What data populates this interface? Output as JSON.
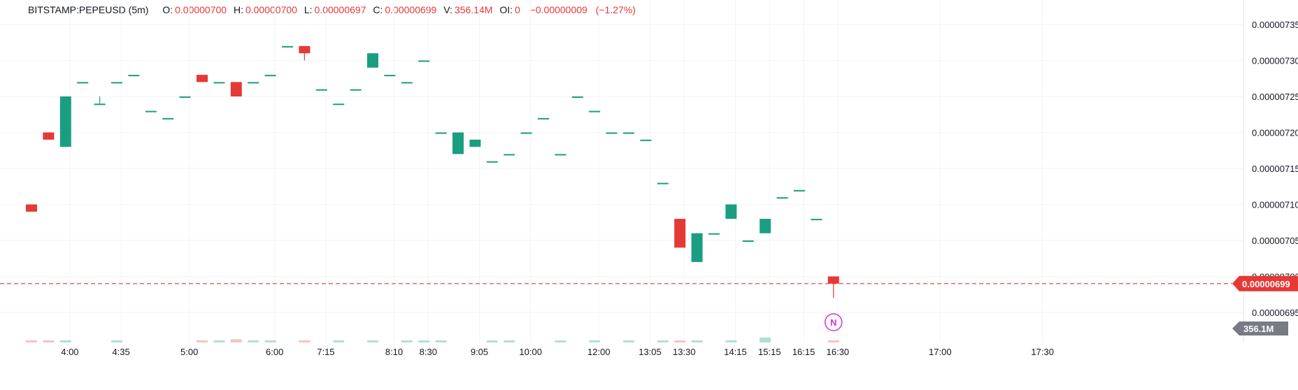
{
  "legend": {
    "symbol": "BITSTAMP:PEPEUSD (5m)",
    "open_label": "O:",
    "open": "0.00000700",
    "high_label": "H:",
    "high": "0.00000700",
    "low_label": "L:",
    "low": "0.00000697",
    "close_label": "C:",
    "close": "0.00000699",
    "volume_label": "V:",
    "volume": "356.14M",
    "oi_label": "OI:",
    "oi": "0",
    "change": "−0.00000009",
    "change_pct": "(−1.27%)"
  },
  "colors": {
    "up": "#1a9e80",
    "down": "#e53935",
    "up_volume": "#b2dfd4",
    "down_volume": "#f7c4c1",
    "grid": "#f0f3fa",
    "axis_text": "#131722",
    "marker": "#d633d6",
    "volume_badge": "#787b86"
  },
  "chart_data": {
    "type": "candlestick",
    "title": "",
    "y_axis": {
      "ticks": [
        "0.00000735",
        "0.00000730",
        "0.00000725",
        "0.00000720",
        "0.00000715",
        "0.00000710",
        "0.00000705",
        "0.00000700",
        "0.00000695"
      ],
      "range": [
        6.91e-06,
        7.37e-06
      ]
    },
    "x_axis": {
      "ticks": [
        {
          "label": "4:00",
          "index": 2.25
        },
        {
          "label": "4:35",
          "index": 5.25
        },
        {
          "label": "5:00",
          "index": 9.25
        },
        {
          "label": "6:00",
          "index": 14.25
        },
        {
          "label": "7:15",
          "index": 17.25
        },
        {
          "label": "8:10",
          "index": 21.25
        },
        {
          "label": "8:30",
          "index": 23.25
        },
        {
          "label": "9:05",
          "index": 26.25
        },
        {
          "label": "10:00",
          "index": 29.25
        },
        {
          "label": "12:00",
          "index": 33.25
        },
        {
          "label": "13:05",
          "index": 36.25
        },
        {
          "label": "13:30",
          "index": 38.25
        },
        {
          "label": "14:15",
          "index": 41.25
        },
        {
          "label": "15:15",
          "index": 43.25
        },
        {
          "label": "16:15",
          "index": 45.25
        },
        {
          "label": "16:30",
          "index": 47.25
        },
        {
          "label": "17:00",
          "index": 53.25
        },
        {
          "label": "17:30",
          "index": 59.25
        }
      ]
    },
    "candles": [
      {
        "o": 7.1,
        "h": 7.1,
        "l": 7.09,
        "c": 7.09,
        "v": 0.004
      },
      {
        "o": 7.2,
        "h": 7.2,
        "l": 7.19,
        "c": 7.19,
        "v": 0.002
      },
      {
        "o": 7.18,
        "h": 7.25,
        "l": 7.18,
        "c": 7.25,
        "v": 0.002
      },
      {
        "o": 7.27,
        "h": 7.27,
        "l": 7.27,
        "c": 7.27,
        "v": 0.0
      },
      {
        "o": 7.24,
        "h": 7.25,
        "l": 7.24,
        "c": 7.24,
        "v": 0.0
      },
      {
        "o": 7.27,
        "h": 7.27,
        "l": 7.27,
        "c": 7.27,
        "v": 0.002
      },
      {
        "o": 7.28,
        "h": 7.28,
        "l": 7.28,
        "c": 7.28,
        "v": 0.0
      },
      {
        "o": 7.23,
        "h": 7.23,
        "l": 7.23,
        "c": 7.23,
        "v": 0.0
      },
      {
        "o": 7.22,
        "h": 7.22,
        "l": 7.22,
        "c": 7.22,
        "v": 0.0
      },
      {
        "o": 7.25,
        "h": 7.25,
        "l": 7.25,
        "c": 7.25,
        "v": 0.0
      },
      {
        "o": 7.28,
        "h": 7.28,
        "l": 7.27,
        "c": 7.27,
        "v": 0.002
      },
      {
        "o": 7.27,
        "h": 7.27,
        "l": 7.27,
        "c": 7.27,
        "v": 0.008
      },
      {
        "o": 7.27,
        "h": 7.27,
        "l": 7.25,
        "c": 7.25,
        "v": 0.052
      },
      {
        "o": 7.27,
        "h": 7.27,
        "l": 7.27,
        "c": 7.27,
        "v": 0.002
      },
      {
        "o": 7.28,
        "h": 7.28,
        "l": 7.28,
        "c": 7.28,
        "v": 0.01
      },
      {
        "o": 7.32,
        "h": 7.32,
        "l": 7.32,
        "c": 7.32,
        "v": 0.0
      },
      {
        "o": 7.32,
        "h": 7.32,
        "l": 7.3,
        "c": 7.31,
        "v": 0.003
      },
      {
        "o": 7.26,
        "h": 7.26,
        "l": 7.26,
        "c": 7.26,
        "v": 0.0
      },
      {
        "o": 7.24,
        "h": 7.24,
        "l": 7.24,
        "c": 7.24,
        "v": 0.001
      },
      {
        "o": 7.26,
        "h": 7.26,
        "l": 7.26,
        "c": 7.26,
        "v": 0.0
      },
      {
        "o": 7.29,
        "h": 7.31,
        "l": 7.29,
        "c": 7.31,
        "v": 0.005
      },
      {
        "o": 7.28,
        "h": 7.28,
        "l": 7.28,
        "c": 7.28,
        "v": 0.0
      },
      {
        "o": 7.27,
        "h": 7.27,
        "l": 7.27,
        "c": 7.27,
        "v": 0.001
      },
      {
        "o": 7.3,
        "h": 7.3,
        "l": 7.3,
        "c": 7.3,
        "v": 0.002
      },
      {
        "o": 7.2,
        "h": 7.2,
        "l": 7.2,
        "c": 7.2,
        "v": 0.001
      },
      {
        "o": 7.17,
        "h": 7.2,
        "l": 7.17,
        "c": 7.2,
        "v": 0.0
      },
      {
        "o": 7.18,
        "h": 7.19,
        "l": 7.18,
        "c": 7.19,
        "v": 0.0
      },
      {
        "o": 7.16,
        "h": 7.16,
        "l": 7.16,
        "c": 7.16,
        "v": 0.002
      },
      {
        "o": 7.17,
        "h": 7.17,
        "l": 7.17,
        "c": 7.17,
        "v": 0.002
      },
      {
        "o": 7.2,
        "h": 7.2,
        "l": 7.2,
        "c": 7.2,
        "v": 0.0
      },
      {
        "o": 7.22,
        "h": 7.22,
        "l": 7.22,
        "c": 7.22,
        "v": 0.0
      },
      {
        "o": 7.17,
        "h": 7.17,
        "l": 7.17,
        "c": 7.17,
        "v": 0.001
      },
      {
        "o": 7.25,
        "h": 7.25,
        "l": 7.25,
        "c": 7.25,
        "v": 0.0
      },
      {
        "o": 7.23,
        "h": 7.23,
        "l": 7.23,
        "c": 7.23,
        "v": 0.001
      },
      {
        "o": 7.2,
        "h": 7.2,
        "l": 7.2,
        "c": 7.2,
        "v": 0.0
      },
      {
        "o": 7.2,
        "h": 7.2,
        "l": 7.2,
        "c": 7.2,
        "v": 0.001
      },
      {
        "o": 7.19,
        "h": 7.19,
        "l": 7.19,
        "c": 7.19,
        "v": 0.0
      },
      {
        "o": 7.13,
        "h": 7.13,
        "l": 7.13,
        "c": 7.13,
        "v": 0.002
      },
      {
        "o": 7.08,
        "h": 7.08,
        "l": 7.04,
        "c": 7.04,
        "v": 0.004
      },
      {
        "o": 7.02,
        "h": 7.06,
        "l": 7.02,
        "c": 7.06,
        "v": 0.003
      },
      {
        "o": 7.06,
        "h": 7.06,
        "l": 7.06,
        "c": 7.06,
        "v": 0.0
      },
      {
        "o": 7.08,
        "h": 7.1,
        "l": 7.08,
        "c": 7.1,
        "v": 0.008
      },
      {
        "o": 7.05,
        "h": 7.05,
        "l": 7.05,
        "c": 7.05,
        "v": 0.0
      },
      {
        "o": 7.06,
        "h": 7.08,
        "l": 7.06,
        "c": 7.08,
        "v": 0.08
      },
      {
        "o": 7.11,
        "h": 7.11,
        "l": 7.11,
        "c": 7.11,
        "v": 0.0
      },
      {
        "o": 7.12,
        "h": 7.12,
        "l": 7.12,
        "c": 7.12,
        "v": 0.0
      },
      {
        "o": 7.08,
        "h": 7.08,
        "l": 7.08,
        "c": 7.08,
        "v": 0.0
      },
      {
        "o": 7.0,
        "h": 7.0,
        "l": 6.97,
        "c": 6.99,
        "v": 0.011
      }
    ],
    "last_price": {
      "value": 6.99e-06,
      "label": "0.00000699"
    },
    "volume_label": "356.1M",
    "marker": {
      "index": 47,
      "text": "N"
    }
  }
}
